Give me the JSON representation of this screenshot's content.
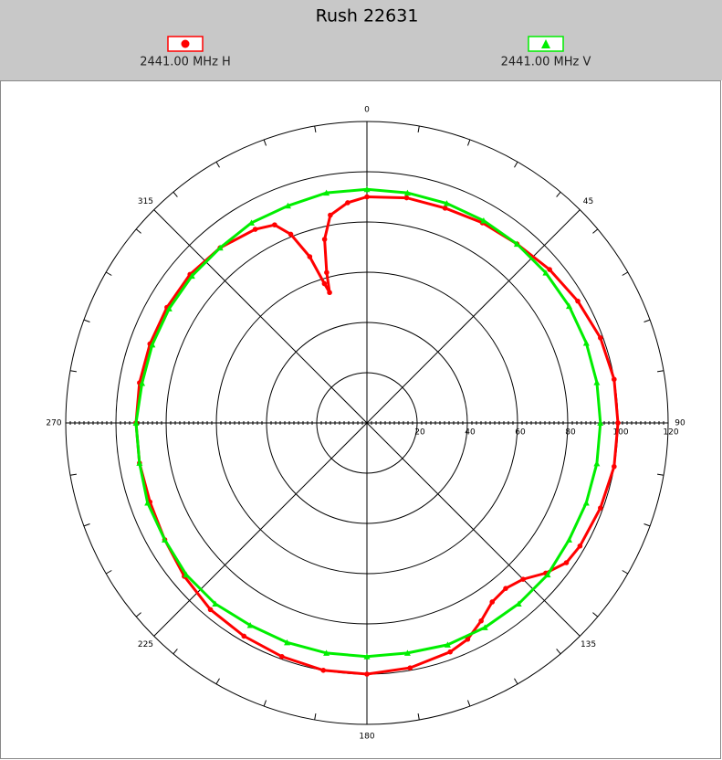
{
  "chart_data": {
    "type": "polar",
    "title": "Rush 22631",
    "rlim": [
      0,
      120
    ],
    "rticks": [
      20,
      40,
      60,
      80,
      100,
      120
    ],
    "thetaticks": [
      0,
      45,
      90,
      135,
      180,
      225,
      270,
      315
    ],
    "series": [
      {
        "name": "2441.00 MHz H",
        "color": "#ff0000",
        "marker": "circle",
        "theta": [
          0,
          10,
          20,
          30,
          40,
          50,
          60,
          70,
          80,
          90,
          100,
          110,
          120,
          125,
          130,
          135,
          140,
          145,
          150,
          155,
          160,
          170,
          180,
          190,
          200,
          210,
          220,
          230,
          240,
          250,
          260,
          270,
          280,
          290,
          300,
          310,
          320,
          330,
          335,
          338,
          341,
          343,
          344,
          345,
          347,
          350,
          355
        ],
        "values": [
          90,
          91,
          91,
          92,
          93,
          95,
          97,
          99,
          100,
          100,
          100,
          99,
          98,
          97,
          93,
          88,
          86,
          87,
          91,
          95,
          97,
          99,
          100,
          100,
          99,
          98,
          97,
          95,
          93,
          92,
          92,
          92,
          92,
          92,
          92,
          92,
          91,
          89,
          87,
          81,
          70,
          58,
          54,
          62,
          75,
          84,
          88
        ]
      },
      {
        "name": "2441.00 MHz V",
        "color": "#00ee00",
        "marker": "triangle",
        "theta": [
          0,
          10,
          20,
          30,
          40,
          50,
          60,
          70,
          80,
          90,
          100,
          110,
          120,
          130,
          140,
          150,
          160,
          170,
          180,
          190,
          200,
          210,
          220,
          230,
          240,
          250,
          260,
          270,
          280,
          290,
          300,
          310,
          320,
          330,
          340,
          350
        ],
        "values": [
          93,
          93,
          93,
          93,
          93,
          93,
          93,
          93,
          93,
          93,
          93,
          93,
          93,
          94,
          94,
          94,
          94,
          93,
          93,
          93,
          93,
          93,
          94,
          94,
          93,
          93,
          92,
          92,
          91,
          91,
          91,
          91,
          91,
          92,
          92,
          93
        ]
      }
    ]
  }
}
